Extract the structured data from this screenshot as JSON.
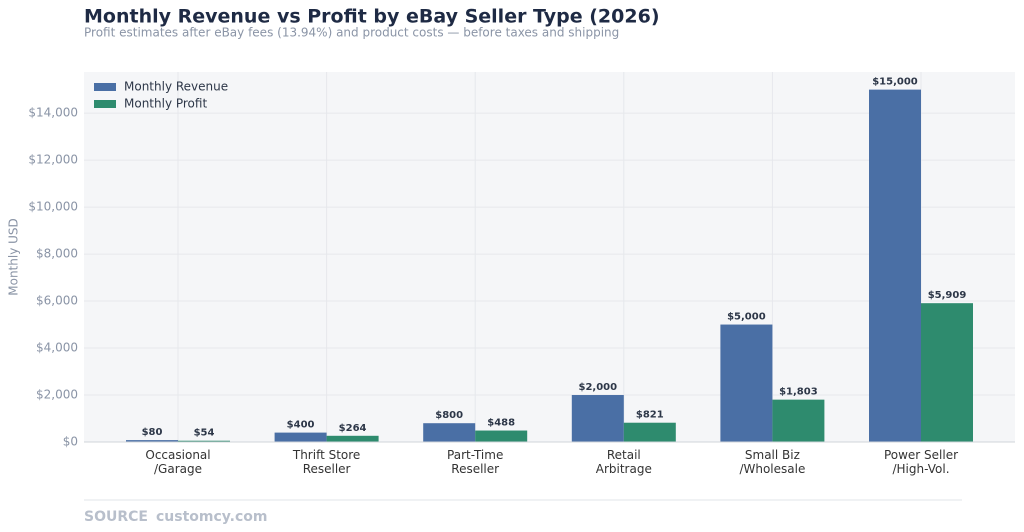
{
  "chart_data": {
    "type": "bar",
    "title": "Monthly Revenue vs Profit by eBay Seller Type (2026)",
    "subtitle": "Profit estimates after eBay fees (13.94%) and product costs — before taxes and shipping",
    "y_label": "Monthly USD",
    "categories": [
      "Occasional\n/Garage",
      "Thrift Store\nReseller",
      "Part-Time\nReseller",
      "Retail\nArbitrage",
      "Small Biz\n/Wholesale",
      "Power Seller\n/High-Vol."
    ],
    "series": [
      {
        "name": "Monthly Revenue",
        "color": "#4a6fa5",
        "values": [
          80,
          400,
          800,
          2000,
          5000,
          15000
        ],
        "value_labels": [
          "$80",
          "$400",
          "$800",
          "$2,000",
          "$5,000",
          "$15,000"
        ]
      },
      {
        "name": "Monthly Profit",
        "color": "#2e8b6e",
        "values": [
          54,
          264,
          488,
          821,
          1803,
          5909
        ],
        "value_labels": [
          "$54",
          "$264",
          "$488",
          "$821",
          "$1,803",
          "$5,909"
        ]
      }
    ],
    "ylim": [
      0,
      15750
    ],
    "yticks": [
      {
        "value": 0,
        "label": "$0"
      },
      {
        "value": 2000,
        "label": "$2,000"
      },
      {
        "value": 4000,
        "label": "$4,000"
      },
      {
        "value": 6000,
        "label": "$6,000"
      },
      {
        "value": 8000,
        "label": "$8,000"
      },
      {
        "value": 10000,
        "label": "$10,000"
      },
      {
        "value": 12000,
        "label": "$12,000"
      },
      {
        "value": 14000,
        "label": "$14,000"
      }
    ],
    "grid": true,
    "legend": "upper left",
    "source_label": "SOURCE",
    "source": "customcy.com"
  }
}
